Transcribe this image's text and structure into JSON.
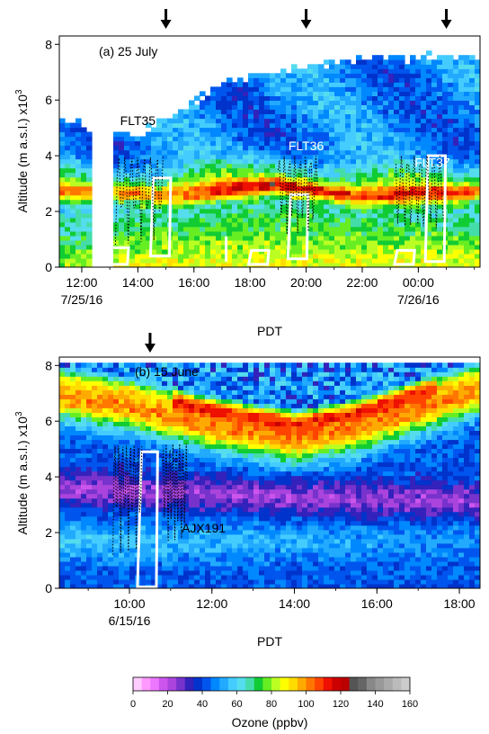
{
  "chart_data": [
    {
      "type": "heatmap",
      "panel_label": "(a) 25 July",
      "xlabel": "PDT",
      "ylabel": "Altitude (m a.s.l.) x10",
      "ylabel_exponent": "3",
      "x_ticks": [
        "12:00",
        "14:00",
        "16:00",
        "18:00",
        "20:00",
        "22:00",
        "00:00"
      ],
      "x_tick_hours": [
        12,
        14,
        16,
        18,
        20,
        22,
        24
      ],
      "x_date_labels": [
        {
          "text": "7/25/16",
          "hour": 12
        },
        {
          "text": "7/26/16",
          "hour": 24
        }
      ],
      "xlim_hours": [
        11.2,
        26.2
      ],
      "y_ticks": [
        "0",
        "2",
        "4",
        "6",
        "8"
      ],
      "ylim": [
        0,
        8.3
      ],
      "arrows_hours": [
        15.0,
        20.0,
        25.0
      ],
      "flight_labels": [
        {
          "text": "FLT35",
          "hour": 14.0,
          "alt": 5.1,
          "color": "#000000"
        },
        {
          "text": "FLT36",
          "hour": 20.0,
          "alt": 4.2,
          "color": "#ffffff"
        },
        {
          "text": "FLT37",
          "hour": 24.5,
          "alt": 3.6,
          "color": "#ffffff"
        }
      ],
      "ozone_profile": {
        "bl_top": [
          2.0,
          2.4,
          3.1,
          2.6,
          2.3
        ],
        "bl_top_hours": [
          11.2,
          15,
          19,
          22,
          26.2
        ],
        "layer_alt": [
          2.7,
          2.6,
          3.0,
          2.6,
          2.7
        ],
        "top_of_data": [
          5.2,
          4.7,
          6.6,
          7.4,
          7.6
        ],
        "top_hours": [
          11.2,
          14,
          17,
          21,
          26.2
        ]
      }
    },
    {
      "type": "heatmap",
      "panel_label": "(b) 15 June",
      "xlabel": "PDT",
      "ylabel": "Altitude (m a.s.l.) x10",
      "ylabel_exponent": "3",
      "x_ticks": [
        "10:00",
        "12:00",
        "14:00",
        "16:00",
        "18:00"
      ],
      "x_tick_hours": [
        10,
        12,
        14,
        16,
        18
      ],
      "x_date_labels": [
        {
          "text": "6/15/16",
          "hour": 10
        }
      ],
      "xlim_hours": [
        8.3,
        18.5
      ],
      "y_ticks": [
        "0",
        "2",
        "4",
        "6",
        "8"
      ],
      "ylim": [
        0,
        8.3
      ],
      "arrows_hours": [
        10.5
      ],
      "flight_labels": [
        {
          "text": "AJX191",
          "hour": 11.8,
          "alt": 2.0,
          "color": "#000000"
        }
      ],
      "ozone_profile": {
        "peak_alt": [
          6.9,
          6.5,
          5.8,
          5.3,
          5.7,
          6.4,
          7.1
        ],
        "peak_hours": [
          8.3,
          10,
          12,
          14,
          15.5,
          17,
          18.5
        ],
        "trough_alt": [
          3.6,
          3.5,
          3.4,
          3.3,
          3.2,
          3.2,
          3.1
        ]
      }
    }
  ],
  "colorbar": {
    "label": "Ozone (ppbv)",
    "ticks": [
      "0",
      "20",
      "40",
      "60",
      "80",
      "100",
      "120",
      "140",
      "160"
    ],
    "range": [
      0,
      160
    ],
    "colors": [
      "#ffccff",
      "#ff99ff",
      "#ee77ff",
      "#cc55ee",
      "#aa44dd",
      "#7733cc",
      "#3322bb",
      "#0033cc",
      "#0055ee",
      "#0088ff",
      "#22aaff",
      "#44ccff",
      "#55ddee",
      "#44ddaa",
      "#11cc33",
      "#66ee22",
      "#bbff22",
      "#ffff00",
      "#ffdd00",
      "#ffaa00",
      "#ff7700",
      "#ff4400",
      "#ee1100",
      "#cc0000",
      "#bb0000",
      "#555555",
      "#666666",
      "#888888",
      "#999999",
      "#aaaaaa",
      "#bbbbbb",
      "#cccccc"
    ]
  }
}
